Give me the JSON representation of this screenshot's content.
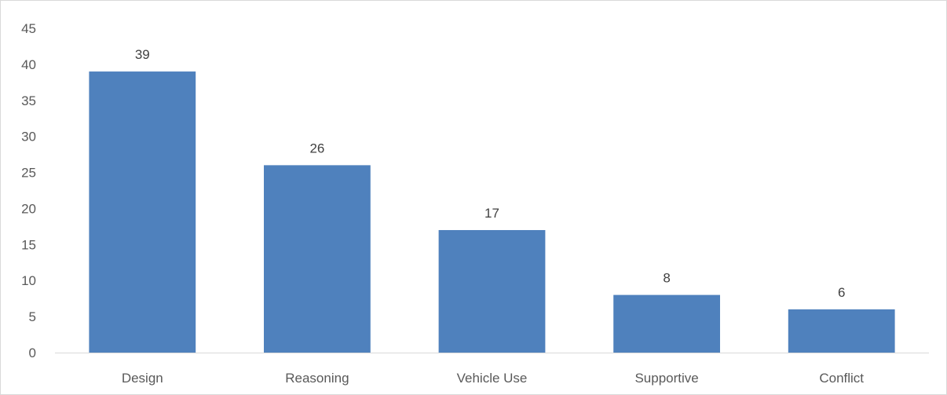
{
  "chart_data": {
    "type": "bar",
    "title": "",
    "xlabel": "",
    "ylabel": "",
    "categories": [
      "Design",
      "Reasoning",
      "Vehicle Use",
      "Supportive",
      "Conflict"
    ],
    "values": [
      39,
      26,
      17,
      8,
      6
    ],
    "data_labels": [
      "39",
      "26",
      "17",
      "8",
      "6"
    ],
    "ylim": [
      0,
      45
    ],
    "y_ticks": [
      0,
      5,
      10,
      15,
      20,
      25,
      30,
      35,
      40,
      45
    ],
    "y_tick_labels": [
      "0",
      "5",
      "10",
      "15",
      "20",
      "25",
      "30",
      "35",
      "40",
      "45"
    ],
    "grid": false,
    "legend": "none",
    "colors": {
      "bar": "#4f81bd",
      "axis": "#d9d9d9",
      "tick_text": "#595959",
      "label_text": "#404040",
      "frame": "#d9d9d9"
    }
  }
}
